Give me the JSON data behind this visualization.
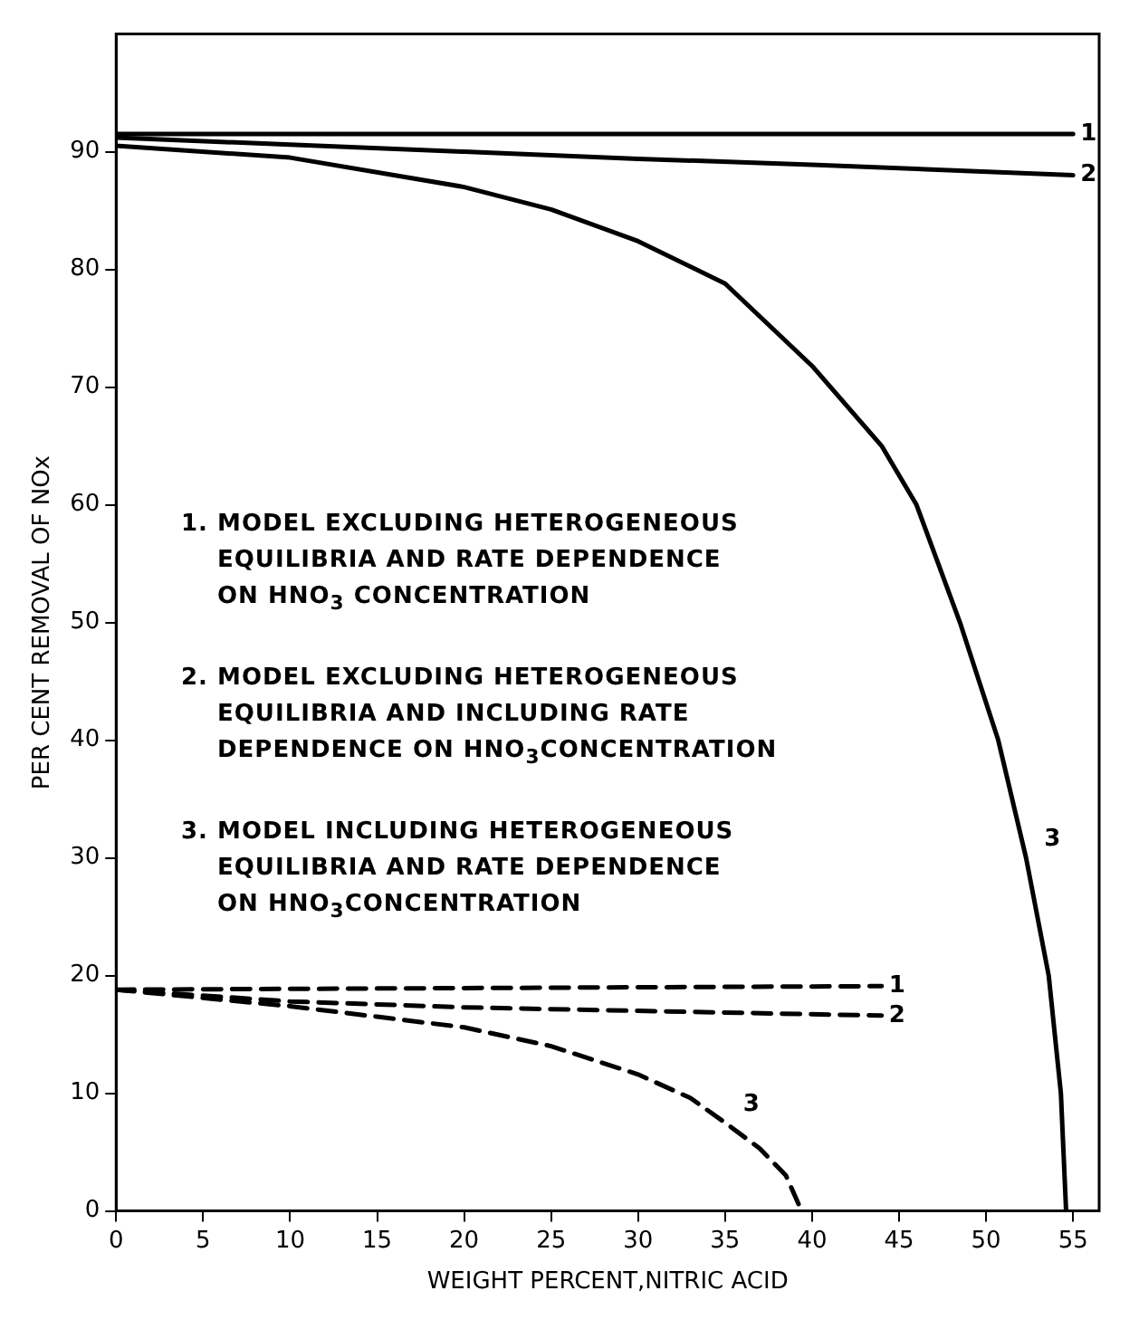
{
  "chart_data": {
    "type": "line",
    "xlabel": "WEIGHT PERCENT,NITRIC ACID",
    "ylabel": "PER CENT REMOVAL OF NOx",
    "xlim": [
      0,
      56.5
    ],
    "xticks": [
      0,
      5,
      10,
      15,
      20,
      25,
      30,
      35,
      40,
      45,
      50,
      55
    ],
    "ylim": [
      0,
      100
    ],
    "yticks": [
      0,
      10,
      20,
      30,
      40,
      50,
      60,
      70,
      80,
      90
    ],
    "grid": false,
    "legend": false,
    "marker": "none",
    "series": [
      {
        "name": "1",
        "color": "#000000",
        "line_style": "solid",
        "x": [
          0,
          55
        ],
        "values": [
          91.5,
          91.5
        ]
      },
      {
        "name": "2",
        "color": "#000000",
        "line_style": "solid",
        "x": [
          0,
          10,
          20,
          30,
          40,
          55
        ],
        "values": [
          91.2,
          90.6,
          90,
          89.4,
          88.9,
          88
        ]
      },
      {
        "name": "3",
        "color": "#000000",
        "line_style": "solid",
        "x": [
          0,
          10,
          20,
          25,
          30,
          35,
          40,
          44,
          46,
          48.5,
          50.7,
          52.3,
          53.6,
          54.3,
          54.6
        ],
        "values": [
          90.5,
          89.5,
          87,
          85.1,
          82.4,
          78.8,
          71.8,
          65,
          60,
          50,
          40,
          30,
          20,
          10,
          0
        ]
      },
      {
        "name": "1",
        "color": "#000000",
        "line_style": "dashed",
        "x": [
          0,
          44
        ],
        "values": [
          18.8,
          19.1
        ]
      },
      {
        "name": "2",
        "color": "#000000",
        "line_style": "dashed",
        "x": [
          0,
          10,
          20,
          30,
          44
        ],
        "values": [
          18.8,
          17.8,
          17.3,
          17,
          16.6
        ]
      },
      {
        "name": "3",
        "color": "#000000",
        "line_style": "dashed",
        "x": [
          0,
          10,
          15,
          20,
          25,
          30,
          33,
          35,
          37,
          38.5,
          39.4
        ],
        "values": [
          18.8,
          17.4,
          16.5,
          15.6,
          14,
          11.6,
          9.6,
          7.5,
          5.3,
          3,
          0
        ]
      }
    ],
    "annotations": [
      "1. MODEL EXCLUDING HETEROGENEOUS\nEQUILIBRIA AND RATE DEPENDENCE\nON HNO$_{3}$ CONCENTRATION",
      "2. MODEL EXCLUDING HETEROGENEOUS\nEQUILIBRIA AND INCLUDING RATE\nDEPENDENCE ON HNO$_{3}$CONCENTRATION",
      "3. MODEL INCLUDING HETEROGENEOUS\nEQUILIBRIA AND RATE DEPENDENCE\nON HNO$_{3}$CONCENTRATION"
    ]
  }
}
